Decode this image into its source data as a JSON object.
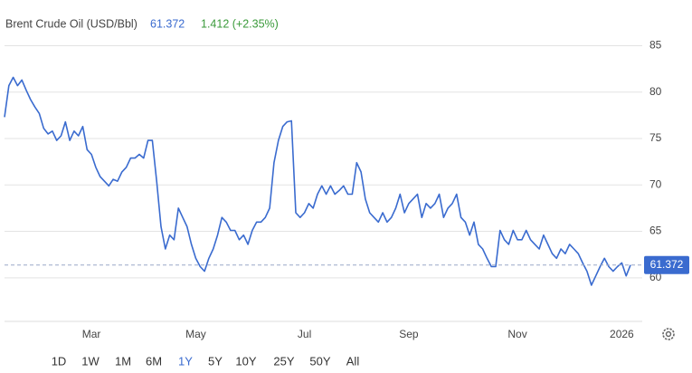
{
  "header": {
    "title": "Brent Crude Oil (USD/Bbl)",
    "price": 61.372,
    "change": "1.412 (+2.35%)"
  },
  "chart_data": {
    "type": "line",
    "color": "#3a6bcf",
    "grid": true,
    "categories": [
      null,
      null,
      null,
      null,
      null,
      null,
      null,
      null,
      null,
      null,
      null,
      null,
      null,
      null,
      null,
      null,
      null,
      null,
      null,
      null,
      "Mar",
      null,
      null,
      null,
      null,
      null,
      null,
      null,
      null,
      null,
      null,
      null,
      null,
      null,
      null,
      null,
      null,
      null,
      null,
      null,
      null,
      null,
      null,
      null,
      "May",
      null,
      null,
      null,
      null,
      null,
      null,
      null,
      null,
      null,
      null,
      null,
      null,
      null,
      null,
      null,
      null,
      null,
      null,
      null,
      null,
      null,
      null,
      null,
      null,
      "Jul",
      null,
      null,
      null,
      null,
      null,
      null,
      null,
      null,
      null,
      null,
      null,
      null,
      null,
      null,
      null,
      null,
      null,
      null,
      null,
      null,
      null,
      null,
      null,
      "Sep",
      null,
      null,
      null,
      null,
      null,
      null,
      null,
      null,
      null,
      null,
      null,
      null,
      null,
      null,
      null,
      null,
      null,
      null,
      null,
      null,
      null,
      null,
      null,
      null,
      "Nov",
      null,
      null,
      null,
      null,
      null,
      null,
      null,
      null,
      null,
      null,
      null,
      null,
      null,
      null,
      null,
      null,
      null,
      null,
      null,
      null,
      null,
      null,
      null,
      "2026",
      null,
      null
    ],
    "values": [
      77.3,
      80.7,
      81.6,
      80.7,
      81.3,
      80.2,
      79.2,
      78.4,
      77.7,
      76.1,
      75.5,
      75.8,
      74.8,
      75.3,
      76.8,
      74.8,
      75.8,
      75.3,
      76.3,
      73.8,
      73.3,
      71.9,
      70.9,
      70.4,
      69.9,
      70.6,
      70.4,
      71.4,
      71.9,
      72.9,
      72.9,
      73.3,
      72.9,
      74.8,
      74.8,
      70.4,
      65.5,
      63.1,
      64.6,
      64.1,
      67.5,
      66.5,
      65.5,
      63.6,
      62.1,
      61.2,
      60.7,
      62.1,
      63.1,
      64.6,
      66.5,
      66.0,
      65.1,
      65.1,
      64.1,
      64.6,
      63.6,
      65.1,
      66.0,
      66.0,
      66.5,
      67.5,
      72.4,
      74.8,
      76.3,
      76.8,
      76.9,
      67.0,
      66.5,
      67.0,
      68.0,
      67.5,
      69.0,
      69.9,
      69.0,
      69.9,
      69.0,
      69.4,
      69.9,
      69.0,
      69.0,
      72.4,
      71.4,
      68.5,
      67.0,
      66.5,
      66.0,
      67.0,
      66.0,
      66.5,
      67.5,
      69.0,
      67.0,
      68.0,
      68.5,
      69.0,
      66.5,
      68.0,
      67.5,
      68.0,
      69.0,
      66.5,
      67.5,
      68.0,
      69.0,
      66.5,
      66.0,
      64.6,
      66.0,
      63.6,
      63.1,
      62.1,
      61.2,
      61.2,
      65.1,
      64.1,
      63.6,
      65.1,
      64.1,
      64.1,
      65.1,
      64.1,
      63.6,
      63.1,
      64.6,
      63.6,
      62.6,
      62.1,
      63.1,
      62.6,
      63.6,
      63.1,
      62.6,
      61.6,
      60.7,
      59.2,
      60.2,
      61.2,
      62.1,
      61.2,
      60.7,
      61.2,
      61.6,
      60.2,
      61.372
    ],
    "ylim": [
      55.3,
      87
    ],
    "yticks": [
      60,
      65,
      70,
      75,
      80,
      85
    ]
  },
  "ranges": [
    "1D",
    "1W",
    "1M",
    "6M",
    "1Y",
    "5Y",
    "10Y",
    "25Y",
    "50Y",
    "All"
  ],
  "selected_range": "1Y"
}
